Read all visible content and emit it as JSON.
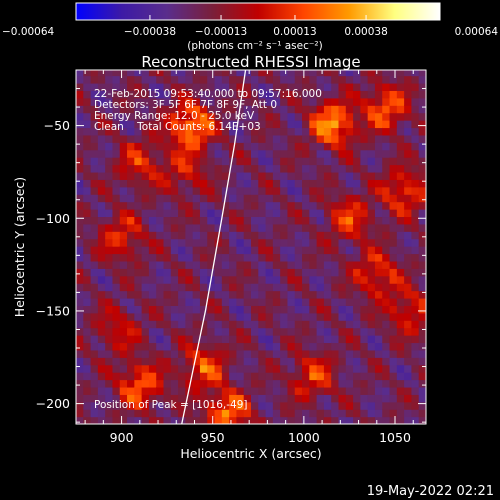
{
  "chart_data": {
    "type": "heatmap",
    "title": "Reconstructed RHESSI Image",
    "xlabel": "Heliocentric X (arcsec)",
    "ylabel": "Heliocentric Y (arcsec)",
    "xlim": [
      875,
      1067
    ],
    "ylim": [
      -211,
      -20
    ],
    "x_ticks": [
      {
        "value": 900,
        "label": "900"
      },
      {
        "value": 950,
        "label": "950"
      },
      {
        "value": 1000,
        "label": "1000"
      },
      {
        "value": 1050,
        "label": "1050"
      }
    ],
    "y_ticks": [
      {
        "value": -50,
        "label": "−50"
      },
      {
        "value": -100,
        "label": "−100"
      },
      {
        "value": -150,
        "label": "−150"
      },
      {
        "value": -200,
        "label": "−200"
      }
    ],
    "colorbar": {
      "range": [
        -0.00064,
        0.00064
      ],
      "ticks": [
        {
          "value": -0.00064,
          "label": "−0.00064"
        },
        {
          "value": -0.00038,
          "label": "−0.00038"
        },
        {
          "value": -0.00013,
          "label": "−0.00013"
        },
        {
          "value": 0.00013,
          "label": "0.00013"
        },
        {
          "value": 0.00038,
          "label": "0.00038"
        },
        {
          "value": 0.00064,
          "label": "0.00064"
        }
      ],
      "unit_label": "(photons cm⁻² s⁻¹ asec⁻²)",
      "colors": [
        "#0000ff",
        "#3c1aa6",
        "#5a2d8c",
        "#7a1f3a",
        "#c00000",
        "#ff4500",
        "#ff9a00",
        "#ffff80",
        "#ffffff"
      ]
    },
    "annotations": {
      "time_range": "22-Feb-2015 09:53:40.000 to 09:57:16.000",
      "detectors": "Detectors: 3F 5F 6F 7F 8F 9F, Att 0",
      "energy_range": "Energy Range: 12.0 - 25.0 keV",
      "clean_counts": "Clean    Total Counts: 6.14E+03",
      "peak_position": "Position of Peak = [1016,-49]"
    },
    "limb_arc": [
      [
        968,
        -20
      ],
      [
        962,
        -60
      ],
      [
        955,
        -100
      ],
      [
        946,
        -150
      ],
      [
        933,
        -211
      ]
    ],
    "hotspots": [
      {
        "x": 938,
        "y": -50,
        "value": 0.00064
      },
      {
        "x": 1016,
        "y": -49,
        "value": 0.00064
      },
      {
        "x": 1045,
        "y": -40,
        "value": 0.0005
      },
      {
        "x": 1055,
        "y": -85,
        "value": 0.00045
      },
      {
        "x": 1025,
        "y": -100,
        "value": 0.0004
      },
      {
        "x": 1040,
        "y": -130,
        "value": 0.00042
      },
      {
        "x": 1005,
        "y": -185,
        "value": 0.0004
      },
      {
        "x": 1058,
        "y": -150,
        "value": 0.00038
      },
      {
        "x": 910,
        "y": -190,
        "value": 0.0005
      },
      {
        "x": 945,
        "y": -180,
        "value": 0.00045
      },
      {
        "x": 958,
        "y": -205,
        "value": 0.00055
      },
      {
        "x": 900,
        "y": -110,
        "value": 0.00038
      },
      {
        "x": 910,
        "y": -70,
        "value": 0.00035
      },
      {
        "x": 935,
        "y": -75,
        "value": 0.0003
      },
      {
        "x": 898,
        "y": -160,
        "value": 0.0003
      }
    ]
  },
  "footer": {
    "timestamp": "19-May-2022 02:21"
  }
}
